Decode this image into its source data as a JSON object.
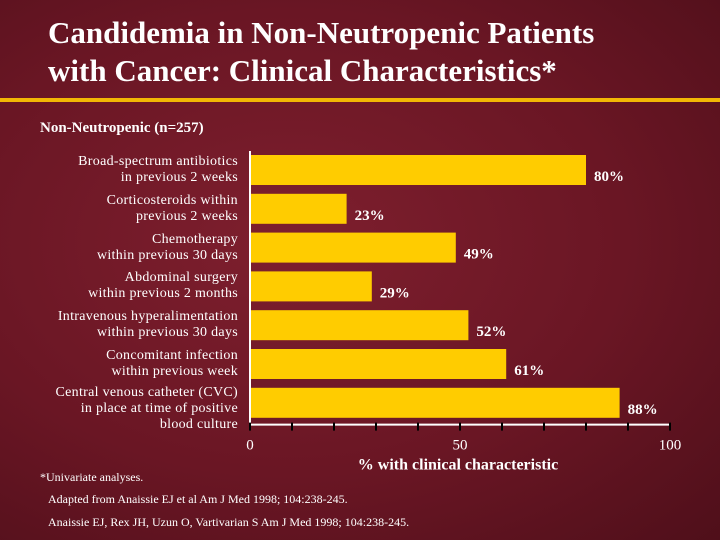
{
  "slide": {
    "title_lines": [
      "Candidemia in Non-Neutropenic Patients",
      "with Cancer: Clinical Characteristics*"
    ],
    "subtitle": "Non-Neutropenic (n=257)",
    "footnote": "*Univariate analyses.",
    "references": [
      "Adapted from Anaissie EJ et al Am J Med 1998; 104:238-245.",
      "Anaissie EJ, Rex JH, Uzun O, Vartivarian S Am J Med 1998; 104:238-245."
    ]
  },
  "colors": {
    "background": "#6a1624",
    "bar": "#ffcc00",
    "rule": "#f2b705",
    "text": "#ffffff"
  },
  "chart_data": {
    "type": "bar",
    "orientation": "horizontal",
    "title": "Non-Neutropenic (n=257)",
    "xlabel": "% with clinical characteristic",
    "ylabel": "",
    "xlim": [
      0,
      100
    ],
    "xticks": [
      0,
      50,
      100
    ],
    "categories": [
      [
        "Broad-spectrum antibiotics",
        "in previous 2 weeks"
      ],
      [
        "Corticosteroids within",
        "previous 2 weeks"
      ],
      [
        "Chemotherapy",
        "within previous 30 days"
      ],
      [
        "Abdominal surgery",
        "within previous 2 months"
      ],
      [
        "Intravenous hyperalimentation",
        "within previous 30 days"
      ],
      [
        "Concomitant infection",
        "within previous week"
      ],
      [
        "Central venous catheter (CVC)",
        "in place at time of positive",
        "blood culture"
      ]
    ],
    "values": [
      80,
      23,
      49,
      29,
      52,
      61,
      88
    ],
    "value_labels": [
      "80%",
      "23%",
      "49%",
      "29%",
      "52%",
      "61%",
      "88%"
    ]
  }
}
